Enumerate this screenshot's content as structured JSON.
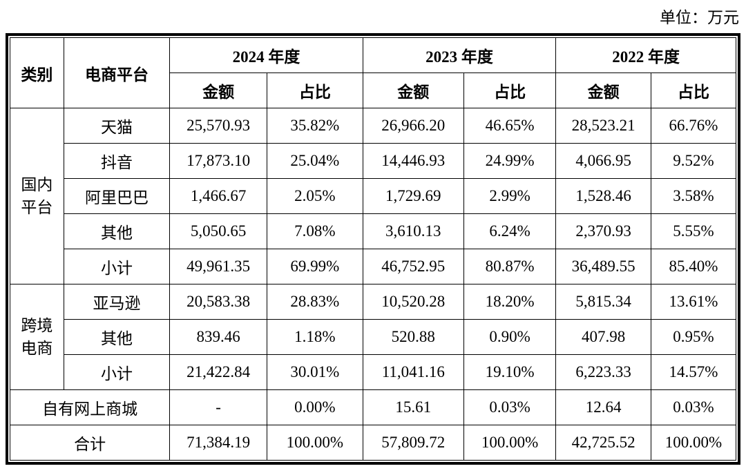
{
  "unit_label": "单位：万元",
  "table": {
    "header": {
      "category": "类别",
      "platform": "电商平台",
      "years": [
        "2024 年度",
        "2023 年度",
        "2022 年度"
      ],
      "amount": "金额",
      "ratio": "占比"
    },
    "groups": [
      {
        "category": "国内平台",
        "rows": [
          {
            "platform": "天猫",
            "cells": [
              "25,570.93",
              "35.82%",
              "26,966.20",
              "46.65%",
              "28,523.21",
              "66.76%"
            ]
          },
          {
            "platform": "抖音",
            "cells": [
              "17,873.10",
              "25.04%",
              "14,446.93",
              "24.99%",
              "4,066.95",
              "9.52%"
            ]
          },
          {
            "platform": "阿里巴巴",
            "cells": [
              "1,466.67",
              "2.05%",
              "1,729.69",
              "2.99%",
              "1,528.46",
              "3.58%"
            ]
          },
          {
            "platform": "其他",
            "cells": [
              "5,050.65",
              "7.08%",
              "3,610.13",
              "6.24%",
              "2,370.93",
              "5.55%"
            ]
          },
          {
            "platform": "小计",
            "cells": [
              "49,961.35",
              "69.99%",
              "46,752.95",
              "80.87%",
              "36,489.55",
              "85.40%"
            ]
          }
        ]
      },
      {
        "category": "跨境电商",
        "rows": [
          {
            "platform": "亚马逊",
            "cells": [
              "20,583.38",
              "28.83%",
              "10,520.28",
              "18.20%",
              "5,815.34",
              "13.61%"
            ]
          },
          {
            "platform": "其他",
            "cells": [
              "839.46",
              "1.18%",
              "520.88",
              "0.90%",
              "407.98",
              "0.95%"
            ]
          },
          {
            "platform": "小计",
            "cells": [
              "21,422.84",
              "30.01%",
              "11,041.16",
              "19.10%",
              "6,223.33",
              "14.57%"
            ]
          }
        ]
      }
    ],
    "own_mall_row": {
      "label": "自有网上商城",
      "cells": [
        "-",
        "0.00%",
        "15.61",
        "0.03%",
        "12.64",
        "0.03%"
      ]
    },
    "total_row": {
      "label": "合计",
      "cells": [
        "71,384.19",
        "100.00%",
        "57,809.72",
        "100.00%",
        "42,725.52",
        "100.00%"
      ]
    }
  }
}
